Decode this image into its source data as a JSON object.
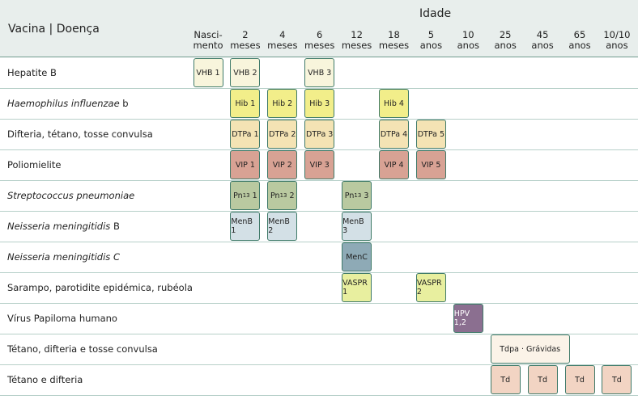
{
  "header": {
    "title": "Vacina | Doença",
    "age_label": "Idade",
    "columns": [
      [
        "Nasci-",
        "mento"
      ],
      [
        "2",
        "meses"
      ],
      [
        "4",
        "meses"
      ],
      [
        "6",
        "meses"
      ],
      [
        "12",
        "meses"
      ],
      [
        "18",
        "meses"
      ],
      [
        "5",
        "anos"
      ],
      [
        "10",
        "anos"
      ],
      [
        "25",
        "anos"
      ],
      [
        "45",
        "anos"
      ],
      [
        "65",
        "anos"
      ],
      [
        "10/10",
        "anos"
      ]
    ]
  },
  "rows": [
    {
      "name": [
        {
          "text": "Hepatite B"
        }
      ],
      "color": "#f8f5dc",
      "cells": [
        "VHB 1",
        "VHB 2",
        null,
        "VHB 3"
      ]
    },
    {
      "name": [
        {
          "text": "Haemophilus influenzae",
          "italic": true
        },
        {
          "text": " b"
        }
      ],
      "color": "#f2ee8a",
      "cells": [
        null,
        "Hib 1",
        "Hib 2",
        "Hib 3",
        null,
        "Hib 4"
      ]
    },
    {
      "name": [
        {
          "text": "Difteria, tétano, tosse convulsa"
        }
      ],
      "color": "#f4e3b4",
      "cells": [
        null,
        "DTPa 1",
        "DTPa 2",
        "DTPa 3",
        null,
        "DTPa 4",
        "DTPa 5"
      ]
    },
    {
      "name": [
        {
          "text": "Poliomielite"
        }
      ],
      "color": "#d8a294",
      "cells": [
        null,
        "VIP 1",
        "VIP 2",
        "VIP 3",
        null,
        "VIP 4",
        "VIP 5"
      ]
    },
    {
      "name": [
        {
          "text": "Streptococcus pneumoniae",
          "italic": true
        }
      ],
      "color": "#b9c9a0",
      "cells": [
        null,
        [
          "Pn",
          "13",
          " 1"
        ],
        [
          "Pn",
          "13",
          " 2"
        ],
        null,
        [
          "Pn",
          "13",
          " 3"
        ]
      ]
    },
    {
      "name": [
        {
          "text": "Neisseria meningitidis",
          "italic": true
        },
        {
          "text": " B"
        }
      ],
      "color": "#d3e0e6",
      "cells": [
        null,
        "MenB 1",
        "MenB 2",
        null,
        "MenB 3"
      ]
    },
    {
      "name": [
        {
          "text": "Neisseria meningitidis C",
          "italic": true
        }
      ],
      "color": "#8eaab6",
      "cells": [
        null,
        null,
        null,
        null,
        "MenC"
      ]
    },
    {
      "name": [
        {
          "text": "Sarampo, parotidite epidémica, rubéola"
        }
      ],
      "color": "#e8ef9f",
      "cells": [
        null,
        null,
        null,
        null,
        "VASPR 1",
        null,
        "VASPR 2"
      ]
    },
    {
      "name": [
        {
          "text": "Vírus Papiloma humano"
        }
      ],
      "color": "#8b6f90",
      "text_color": "#ffffff",
      "cells": [
        null,
        null,
        null,
        null,
        null,
        null,
        null,
        "HPV 1,2"
      ]
    },
    {
      "name": [
        {
          "text": "Tétano, difteria e tosse convulsa"
        }
      ],
      "color": "#fbf3e8",
      "cells": [
        null,
        null,
        null,
        null,
        null,
        null,
        null,
        null,
        "Tdpa · Grávidas"
      ]
    },
    {
      "name": [
        {
          "text": "Tétano e difteria"
        }
      ],
      "color": "#f2d4c3",
      "cells": [
        null,
        null,
        null,
        null,
        null,
        null,
        null,
        null,
        "Td",
        "Td",
        "Td",
        "Td"
      ]
    }
  ]
}
